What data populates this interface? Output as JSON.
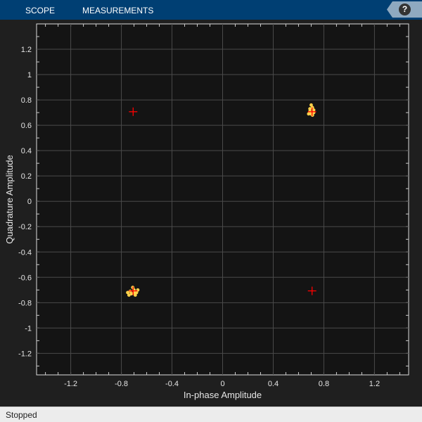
{
  "toolbar": {
    "tabs": [
      "SCOPE",
      "MEASUREMENTS"
    ],
    "help_icon": "question-mark-icon"
  },
  "status": "Stopped",
  "chart_data": {
    "type": "scatter",
    "xlabel": "In-phase Amplitude",
    "ylabel": "Quadrature Amplitude",
    "xlim": [
      -1.47,
      1.47
    ],
    "ylim": [
      -1.37,
      1.4
    ],
    "xticks": [
      -1.2,
      -0.8,
      -0.4,
      0,
      0.4,
      0.8,
      1.2
    ],
    "xtick_labels": [
      "-1.2",
      "-0.8",
      "-0.4",
      "0",
      "0.4",
      "0.8",
      "1.2"
    ],
    "yticks": [
      1.2,
      1,
      0.8,
      0.6,
      0.4,
      0.2,
      0,
      -0.2,
      -0.4,
      -0.6,
      -0.8,
      -1,
      -1.2
    ],
    "ytick_labels": [
      "1.2",
      "1",
      "0.8",
      "0.6",
      "0.4",
      "0.2",
      "0",
      "-0.2",
      "-0.4",
      "-0.6",
      "-0.8",
      "-1",
      "-1.2"
    ],
    "grid": true,
    "colors": {
      "background": "#141414",
      "grid": "#4a4a4a",
      "received": "#ffd24a",
      "reference": "#ff0000"
    },
    "reference": [
      [
        -0.707,
        0.707
      ],
      [
        0.707,
        0.707
      ],
      [
        -0.707,
        -0.707
      ],
      [
        0.707,
        -0.707
      ]
    ],
    "received": [
      [
        0.7,
        0.76
      ],
      [
        0.71,
        0.74
      ],
      [
        0.72,
        0.72
      ],
      [
        0.69,
        0.71
      ],
      [
        0.7,
        0.69
      ],
      [
        0.68,
        0.69
      ],
      [
        0.72,
        0.7
      ],
      [
        0.71,
        0.68
      ],
      [
        0.69,
        0.73
      ],
      [
        -0.71,
        -0.68
      ],
      [
        -0.7,
        -0.7
      ],
      [
        -0.73,
        -0.71
      ],
      [
        -0.68,
        -0.72
      ],
      [
        -0.72,
        -0.73
      ],
      [
        -0.69,
        -0.74
      ],
      [
        -0.75,
        -0.72
      ],
      [
        -0.74,
        -0.74
      ],
      [
        -0.7,
        -0.72
      ],
      [
        -0.67,
        -0.7
      ]
    ]
  }
}
